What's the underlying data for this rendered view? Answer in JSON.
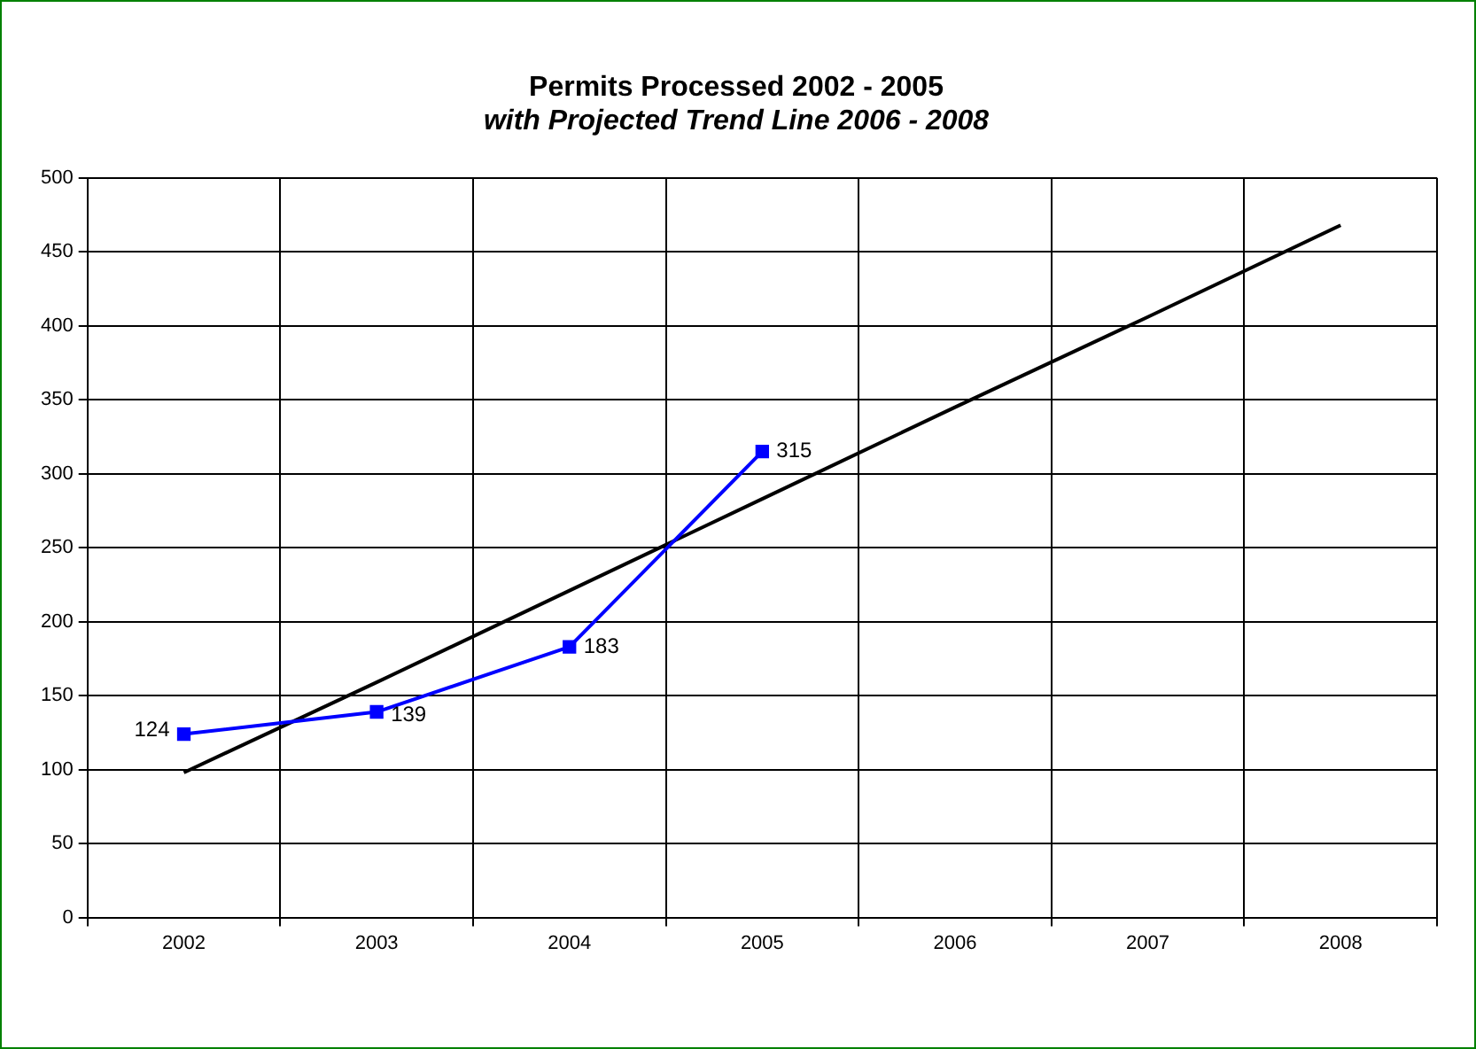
{
  "chart_data": {
    "type": "line",
    "title": "Permits Processed 2002 - 2005",
    "subtitle": "with Projected Trend Line 2006 - 2008",
    "categories": [
      "2002",
      "2003",
      "2004",
      "2005",
      "2006",
      "2007",
      "2008"
    ],
    "series": [
      {
        "color": "#0000ff",
        "values": [
          124,
          139,
          183,
          315,
          null,
          null,
          null
        ],
        "marker": "square",
        "data_labels": true
      },
      {
        "type": "line",
        "color": "#000000",
        "values": [
          98,
          159,
          221,
          283,
          345,
          406,
          468
        ],
        "marker": "none"
      }
    ],
    "ylim": [
      0,
      500
    ],
    "yticks": [
      0,
      50,
      100,
      150,
      200,
      250,
      300,
      350,
      400,
      450,
      500
    ],
    "grid": true,
    "legend": false,
    "line_style": "solid"
  }
}
